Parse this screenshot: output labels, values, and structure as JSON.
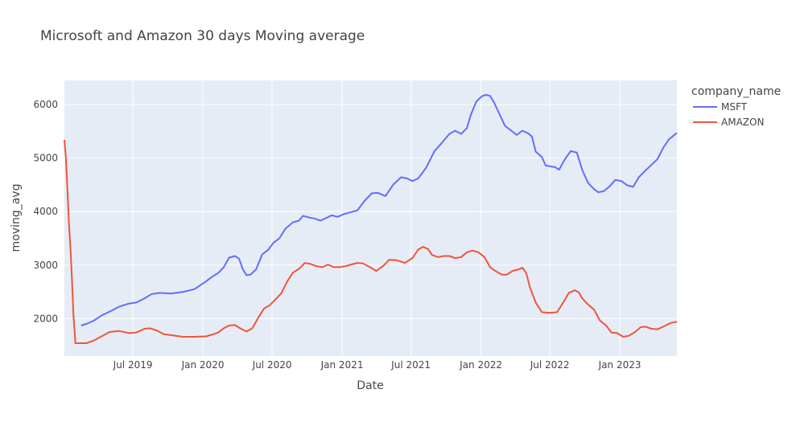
{
  "chart_data": {
    "type": "line",
    "title": "Microsoft and Amazon 30 days Moving average",
    "xlabel": "Date",
    "ylabel": "moving_avg",
    "xlim": [
      "2019-01-02",
      "2023-05-31"
    ],
    "ylim": [
      1300,
      6450
    ],
    "x_ticks": [
      {
        "date": "2019-07-01",
        "label": "Jul 2019"
      },
      {
        "date": "2020-01-01",
        "label": "Jan 2020"
      },
      {
        "date": "2020-07-01",
        "label": "Jul 2020"
      },
      {
        "date": "2021-01-01",
        "label": "Jan 2021"
      },
      {
        "date": "2021-07-01",
        "label": "Jul 2021"
      },
      {
        "date": "2022-01-01",
        "label": "Jan 2022"
      },
      {
        "date": "2022-07-01",
        "label": "Jul 2022"
      },
      {
        "date": "2023-01-01",
        "label": "Jan 2023"
      }
    ],
    "y_ticks": [
      2000,
      3000,
      4000,
      5000,
      6000
    ],
    "grid": true,
    "legend": {
      "title": "company_name",
      "position": "right"
    },
    "series": [
      {
        "name": "MSFT",
        "color": "#636efa",
        "points": [
          [
            "2019-02-15",
            1870
          ],
          [
            "2019-03-01",
            1900
          ],
          [
            "2019-03-20",
            1960
          ],
          [
            "2019-04-10",
            2060
          ],
          [
            "2019-05-01",
            2130
          ],
          [
            "2019-05-25",
            2220
          ],
          [
            "2019-06-20",
            2280
          ],
          [
            "2019-07-10",
            2300
          ],
          [
            "2019-08-01",
            2380
          ],
          [
            "2019-08-20",
            2460
          ],
          [
            "2019-09-10",
            2480
          ],
          [
            "2019-10-10",
            2470
          ],
          [
            "2019-11-10",
            2500
          ],
          [
            "2019-12-10",
            2550
          ],
          [
            "2020-01-10",
            2700
          ],
          [
            "2020-01-25",
            2780
          ],
          [
            "2020-02-10",
            2850
          ],
          [
            "2020-02-25",
            2960
          ],
          [
            "2020-03-10",
            3140
          ],
          [
            "2020-03-25",
            3170
          ],
          [
            "2020-04-05",
            3120
          ],
          [
            "2020-04-15",
            2920
          ],
          [
            "2020-04-25",
            2810
          ],
          [
            "2020-05-05",
            2820
          ],
          [
            "2020-05-20",
            2920
          ],
          [
            "2020-06-05",
            3200
          ],
          [
            "2020-06-20",
            3280
          ],
          [
            "2020-07-05",
            3420
          ],
          [
            "2020-07-20",
            3500
          ],
          [
            "2020-08-05",
            3680
          ],
          [
            "2020-08-25",
            3800
          ],
          [
            "2020-09-10",
            3830
          ],
          [
            "2020-09-20",
            3920
          ],
          [
            "2020-10-05",
            3890
          ],
          [
            "2020-10-20",
            3870
          ],
          [
            "2020-11-05",
            3830
          ],
          [
            "2020-11-20",
            3880
          ],
          [
            "2020-12-05",
            3930
          ],
          [
            "2020-12-20",
            3900
          ],
          [
            "2021-01-05",
            3950
          ],
          [
            "2021-01-25",
            3990
          ],
          [
            "2021-02-10",
            4020
          ],
          [
            "2021-03-01",
            4200
          ],
          [
            "2021-03-20",
            4340
          ],
          [
            "2021-04-05",
            4350
          ],
          [
            "2021-04-25",
            4290
          ],
          [
            "2021-05-15",
            4500
          ],
          [
            "2021-06-05",
            4640
          ],
          [
            "2021-06-20",
            4620
          ],
          [
            "2021-07-05",
            4570
          ],
          [
            "2021-07-20",
            4620
          ],
          [
            "2021-08-10",
            4820
          ],
          [
            "2021-09-01",
            5130
          ],
          [
            "2021-09-20",
            5280
          ],
          [
            "2021-10-10",
            5450
          ],
          [
            "2021-10-25",
            5510
          ],
          [
            "2021-11-10",
            5450
          ],
          [
            "2021-11-25",
            5560
          ],
          [
            "2021-12-05",
            5800
          ],
          [
            "2021-12-20",
            6060
          ],
          [
            "2022-01-05",
            6160
          ],
          [
            "2022-01-15",
            6180
          ],
          [
            "2022-01-25",
            6160
          ],
          [
            "2022-02-05",
            6030
          ],
          [
            "2022-02-20",
            5800
          ],
          [
            "2022-03-05",
            5600
          ],
          [
            "2022-03-20",
            5520
          ],
          [
            "2022-04-05",
            5430
          ],
          [
            "2022-04-20",
            5510
          ],
          [
            "2022-05-05",
            5460
          ],
          [
            "2022-05-15",
            5400
          ],
          [
            "2022-05-25",
            5120
          ],
          [
            "2022-06-10",
            5020
          ],
          [
            "2022-06-20",
            4860
          ],
          [
            "2022-07-05",
            4840
          ],
          [
            "2022-07-15",
            4830
          ],
          [
            "2022-07-25",
            4780
          ],
          [
            "2022-08-10",
            4980
          ],
          [
            "2022-08-25",
            5130
          ],
          [
            "2022-09-10",
            5100
          ],
          [
            "2022-09-25",
            4760
          ],
          [
            "2022-10-10",
            4530
          ],
          [
            "2022-10-25",
            4420
          ],
          [
            "2022-11-05",
            4360
          ],
          [
            "2022-11-20",
            4380
          ],
          [
            "2022-12-05",
            4470
          ],
          [
            "2022-12-20",
            4590
          ],
          [
            "2023-01-05",
            4570
          ],
          [
            "2023-01-20",
            4490
          ],
          [
            "2023-02-05",
            4460
          ],
          [
            "2023-02-20",
            4640
          ],
          [
            "2023-03-10",
            4770
          ],
          [
            "2023-03-25",
            4870
          ],
          [
            "2023-04-10",
            4980
          ],
          [
            "2023-04-25",
            5190
          ],
          [
            "2023-05-10",
            5350
          ],
          [
            "2023-05-31",
            5470
          ]
        ]
      },
      {
        "name": "AMAZON",
        "color": "#ef553b",
        "points": [
          [
            "2019-01-02",
            5340
          ],
          [
            "2019-01-06",
            5000
          ],
          [
            "2019-01-10",
            4400
          ],
          [
            "2019-01-14",
            3780
          ],
          [
            "2019-01-18",
            3300
          ],
          [
            "2019-01-22",
            2700
          ],
          [
            "2019-01-26",
            2050
          ],
          [
            "2019-01-31",
            1540
          ],
          [
            "2019-02-15",
            1540
          ],
          [
            "2019-03-01",
            1540
          ],
          [
            "2019-03-20",
            1590
          ],
          [
            "2019-04-10",
            1670
          ],
          [
            "2019-05-01",
            1750
          ],
          [
            "2019-05-25",
            1770
          ],
          [
            "2019-06-20",
            1730
          ],
          [
            "2019-07-10",
            1740
          ],
          [
            "2019-08-01",
            1810
          ],
          [
            "2019-08-15",
            1820
          ],
          [
            "2019-09-01",
            1780
          ],
          [
            "2019-09-20",
            1710
          ],
          [
            "2019-10-10",
            1690
          ],
          [
            "2019-11-10",
            1660
          ],
          [
            "2019-12-10",
            1660
          ],
          [
            "2020-01-10",
            1670
          ],
          [
            "2020-01-25",
            1700
          ],
          [
            "2020-02-10",
            1740
          ],
          [
            "2020-02-25",
            1820
          ],
          [
            "2020-03-10",
            1870
          ],
          [
            "2020-03-25",
            1880
          ],
          [
            "2020-04-10",
            1810
          ],
          [
            "2020-04-25",
            1760
          ],
          [
            "2020-05-10",
            1820
          ],
          [
            "2020-05-25",
            2010
          ],
          [
            "2020-06-10",
            2190
          ],
          [
            "2020-06-25",
            2250
          ],
          [
            "2020-07-10",
            2360
          ],
          [
            "2020-07-25",
            2470
          ],
          [
            "2020-08-10",
            2700
          ],
          [
            "2020-08-25",
            2860
          ],
          [
            "2020-09-10",
            2930
          ],
          [
            "2020-09-25",
            3040
          ],
          [
            "2020-10-10",
            3020
          ],
          [
            "2020-10-25",
            2980
          ],
          [
            "2020-11-10",
            2960
          ],
          [
            "2020-11-25",
            3010
          ],
          [
            "2020-12-10",
            2960
          ],
          [
            "2020-12-25",
            2960
          ],
          [
            "2021-01-10",
            2980
          ],
          [
            "2021-01-25",
            3010
          ],
          [
            "2021-02-10",
            3040
          ],
          [
            "2021-02-25",
            3030
          ],
          [
            "2021-03-15",
            2960
          ],
          [
            "2021-04-01",
            2890
          ],
          [
            "2021-04-20",
            2990
          ],
          [
            "2021-05-05",
            3100
          ],
          [
            "2021-05-25",
            3090
          ],
          [
            "2021-06-15",
            3040
          ],
          [
            "2021-07-05",
            3130
          ],
          [
            "2021-07-20",
            3290
          ],
          [
            "2021-08-01",
            3340
          ],
          [
            "2021-08-15",
            3300
          ],
          [
            "2021-08-25",
            3190
          ],
          [
            "2021-09-10",
            3150
          ],
          [
            "2021-09-25",
            3170
          ],
          [
            "2021-10-10",
            3170
          ],
          [
            "2021-10-25",
            3130
          ],
          [
            "2021-11-10",
            3150
          ],
          [
            "2021-11-25",
            3240
          ],
          [
            "2021-12-10",
            3270
          ],
          [
            "2021-12-25",
            3240
          ],
          [
            "2022-01-10",
            3150
          ],
          [
            "2022-01-25",
            2960
          ],
          [
            "2022-02-10",
            2880
          ],
          [
            "2022-02-25",
            2820
          ],
          [
            "2022-03-10",
            2820
          ],
          [
            "2022-03-25",
            2890
          ],
          [
            "2022-04-10",
            2920
          ],
          [
            "2022-04-20",
            2950
          ],
          [
            "2022-04-30",
            2850
          ],
          [
            "2022-05-10",
            2580
          ],
          [
            "2022-05-25",
            2300
          ],
          [
            "2022-06-10",
            2120
          ],
          [
            "2022-06-25",
            2110
          ],
          [
            "2022-07-05",
            2110
          ],
          [
            "2022-07-20",
            2120
          ],
          [
            "2022-08-05",
            2300
          ],
          [
            "2022-08-20",
            2480
          ],
          [
            "2022-09-05",
            2530
          ],
          [
            "2022-09-15",
            2490
          ],
          [
            "2022-09-25",
            2370
          ],
          [
            "2022-10-10",
            2260
          ],
          [
            "2022-10-25",
            2170
          ],
          [
            "2022-11-10",
            1960
          ],
          [
            "2022-11-25",
            1880
          ],
          [
            "2022-12-10",
            1740
          ],
          [
            "2022-12-25",
            1730
          ],
          [
            "2023-01-10",
            1660
          ],
          [
            "2023-01-25",
            1680
          ],
          [
            "2023-02-10",
            1750
          ],
          [
            "2023-02-25",
            1840
          ],
          [
            "2023-03-10",
            1850
          ],
          [
            "2023-03-25",
            1810
          ],
          [
            "2023-04-10",
            1800
          ],
          [
            "2023-04-25",
            1850
          ],
          [
            "2023-05-15",
            1920
          ],
          [
            "2023-05-31",
            1940
          ]
        ]
      }
    ]
  }
}
